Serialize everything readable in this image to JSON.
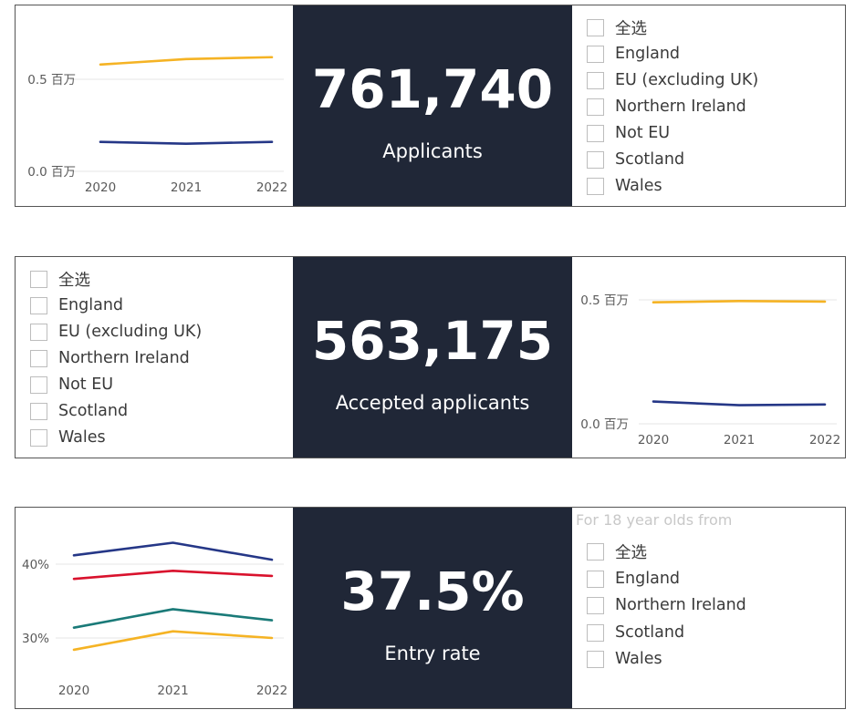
{
  "applicants": {
    "value": "761,740",
    "label": "Applicants",
    "options": [
      "全选",
      "England",
      "EU (excluding UK)",
      "Northern Ireland",
      "Not EU",
      "Scotland",
      "Wales"
    ]
  },
  "accepted": {
    "value": "563,175",
    "label": "Accepted applicants",
    "options": [
      "全选",
      "England",
      "EU (excluding UK)",
      "Northern Ireland",
      "Not EU",
      "Scotland",
      "Wales"
    ]
  },
  "entry": {
    "value": "37.5%",
    "label": "Entry rate",
    "slicer_title": "For 18 year olds from",
    "options": [
      "全选",
      "England",
      "Northern Ireland",
      "Scotland",
      "Wales"
    ]
  },
  "chart_data": [
    {
      "type": "line",
      "categories": [
        "2020",
        "2021",
        "2022"
      ],
      "series": [
        {
          "values": [
            0.58,
            0.61,
            0.62
          ],
          "color": "#F5B324"
        },
        {
          "values": [
            0.16,
            0.15,
            0.16
          ],
          "color": "#253787"
        }
      ],
      "yticks": [
        0.0,
        0.5
      ],
      "ytick_labels": [
        "0.0 百万",
        "0.5 百万"
      ],
      "ylim": [
        0,
        0.5
      ],
      "grid": true
    },
    {
      "type": "line",
      "categories": [
        "2020",
        "2021",
        "2022"
      ],
      "series": [
        {
          "values": [
            0.49,
            0.495,
            0.493
          ],
          "color": "#F5B324"
        },
        {
          "values": [
            0.09,
            0.075,
            0.078
          ],
          "color": "#253787"
        }
      ],
      "yticks": [
        0.0,
        0.5
      ],
      "ytick_labels": [
        "0.0 百万",
        "0.5 百万"
      ],
      "ylim": [
        0,
        0.5
      ],
      "grid": true
    },
    {
      "type": "line",
      "categories": [
        "2020",
        "2021",
        "2022"
      ],
      "series": [
        {
          "values": [
            41.2,
            42.9,
            40.6
          ],
          "color": "#253787"
        },
        {
          "values": [
            38.0,
            39.1,
            38.4
          ],
          "color": "#D9122D"
        },
        {
          "values": [
            31.4,
            33.9,
            32.4
          ],
          "color": "#1A7A78"
        },
        {
          "values": [
            28.4,
            30.9,
            30.0
          ],
          "color": "#F5B324"
        }
      ],
      "yticks": [
        30,
        40
      ],
      "ytick_labels": [
        "30%",
        "40%"
      ],
      "ylim": [
        30,
        40
      ],
      "grid": true
    }
  ]
}
